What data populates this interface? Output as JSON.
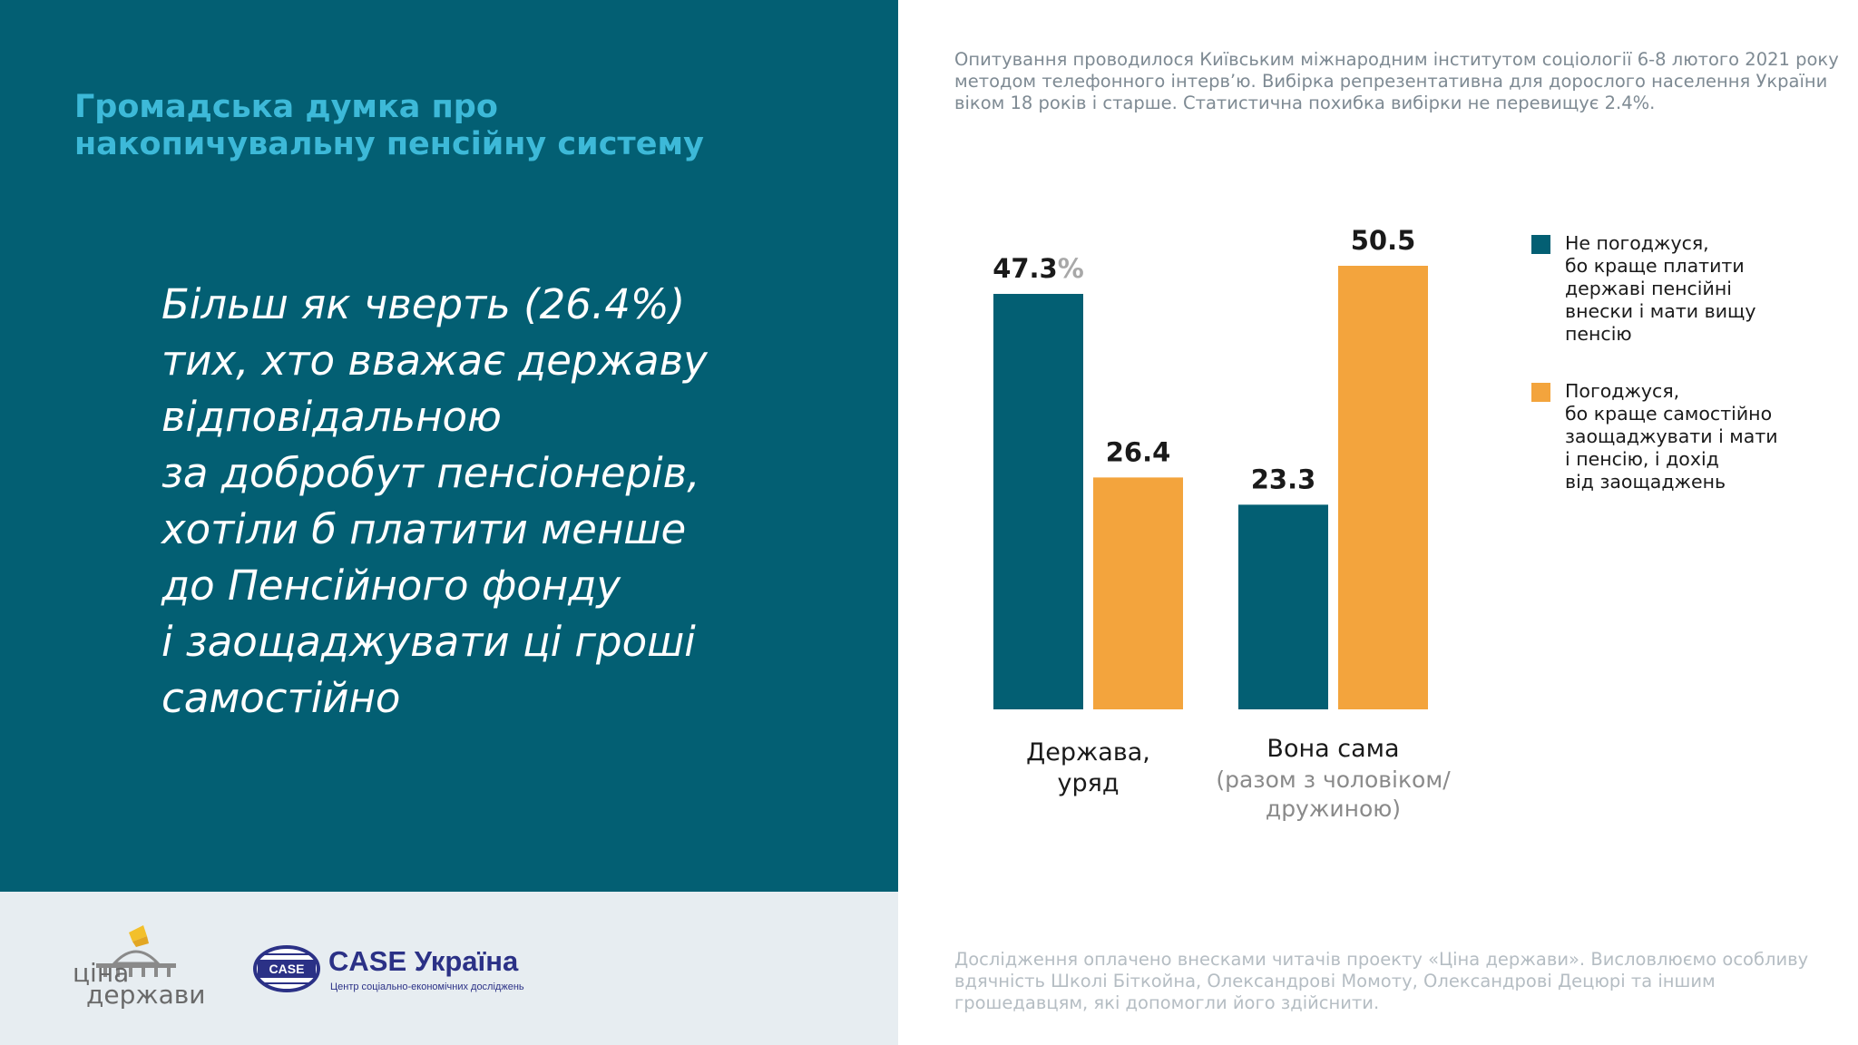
{
  "panel": {
    "title": "Громадська думка про накопичувальну пенсійну систему",
    "headline": "Більш як чверть (26.4%)\nтих, хто вважає державу\nвідповідальною\nза добробут пенсіонерів,\nхотіли б платити менше\nдо Пенсійного фонду\nі заощаджувати ці гроші\nсамостійно"
  },
  "method_note": "Опитування проводилося Київським міжнародним інститутом соціології 6-8 лютого 2021 року методом телефонного інтерв’ю. Вибірка репрезентативна для дорослого населення України віком 18 років і старше. Статистична похибка вибірки не перевищує 2.4%.",
  "funding_note": "Дослідження оплачено внесками читачів проекту «Ціна держави». Висловлюємо особливу вдячність Школі Біткойна, Олександрові Момоту, Олександрові Децюрі та іншим грошедавцям, які допомогли його здійснити.",
  "logos": {
    "cina_line1": "ціна",
    "cina_line2": "держави",
    "case_badge": "CASE",
    "case_name": "CASE Україна",
    "case_subtitle": "Центр соціально-економічних досліджень"
  },
  "colors": {
    "panel_bg": "#035f73",
    "title": "#3db9d8",
    "teal": "#035f73",
    "orange": "#f3a43d",
    "footer_bg": "#e7edf1",
    "case_blue": "#2b3186"
  },
  "chart_data": {
    "type": "bar",
    "categories": [
      {
        "main": "Держава,\nуряд",
        "sub": ""
      },
      {
        "main": "Вона сама",
        "sub": "(разом з чоловіком/\nдружиною)"
      }
    ],
    "series": [
      {
        "name": "Не погоджуся,\nбо краще платити\nдержаві пенсійні\nвнески і мати вищу\nпенсію",
        "color": "#035f73",
        "values": [
          47.3,
          23.3
        ],
        "labels": [
          "47.3",
          "23.3"
        ]
      },
      {
        "name": "Погоджуся,\nбо краще самостійно\nзаощаджувати і мати\nі пенсію, і дохід\nвід заощаджень",
        "color": "#f3a43d",
        "values": [
          26.4,
          50.5
        ],
        "labels": [
          "26.4",
          "50.5"
        ]
      }
    ],
    "first_label_suffix": "%",
    "ylim": [
      0,
      50.5
    ],
    "grid": false,
    "legend_position": "right"
  }
}
